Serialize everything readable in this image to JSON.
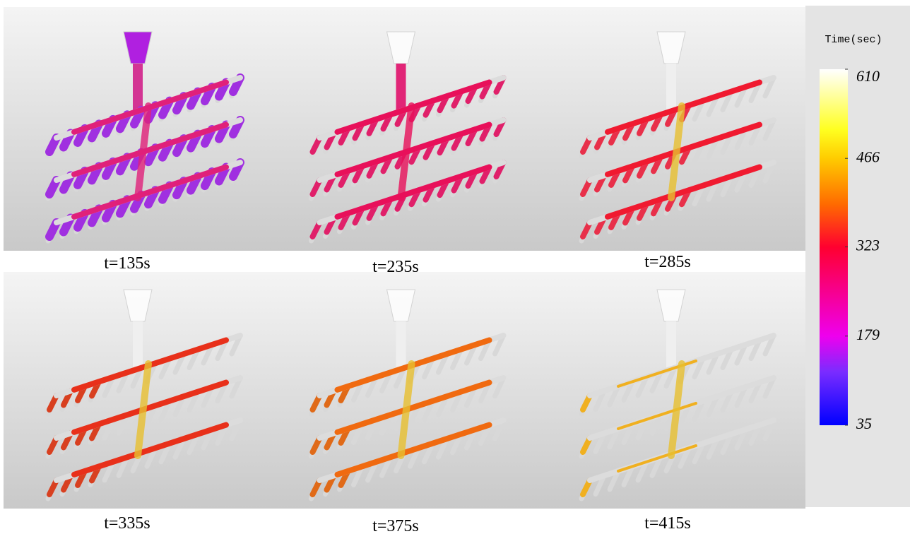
{
  "panels": [
    {
      "label": "t=135s"
    },
    {
      "label": "t=235s"
    },
    {
      "label": "t=285s"
    },
    {
      "label": "t=335s"
    },
    {
      "label": "t=375s"
    },
    {
      "label": "t=415s"
    }
  ],
  "colorbar": {
    "title": "Time(sec)",
    "lim": [
      35,
      610
    ],
    "ticks": [
      35,
      179,
      323,
      466,
      610
    ]
  }
}
